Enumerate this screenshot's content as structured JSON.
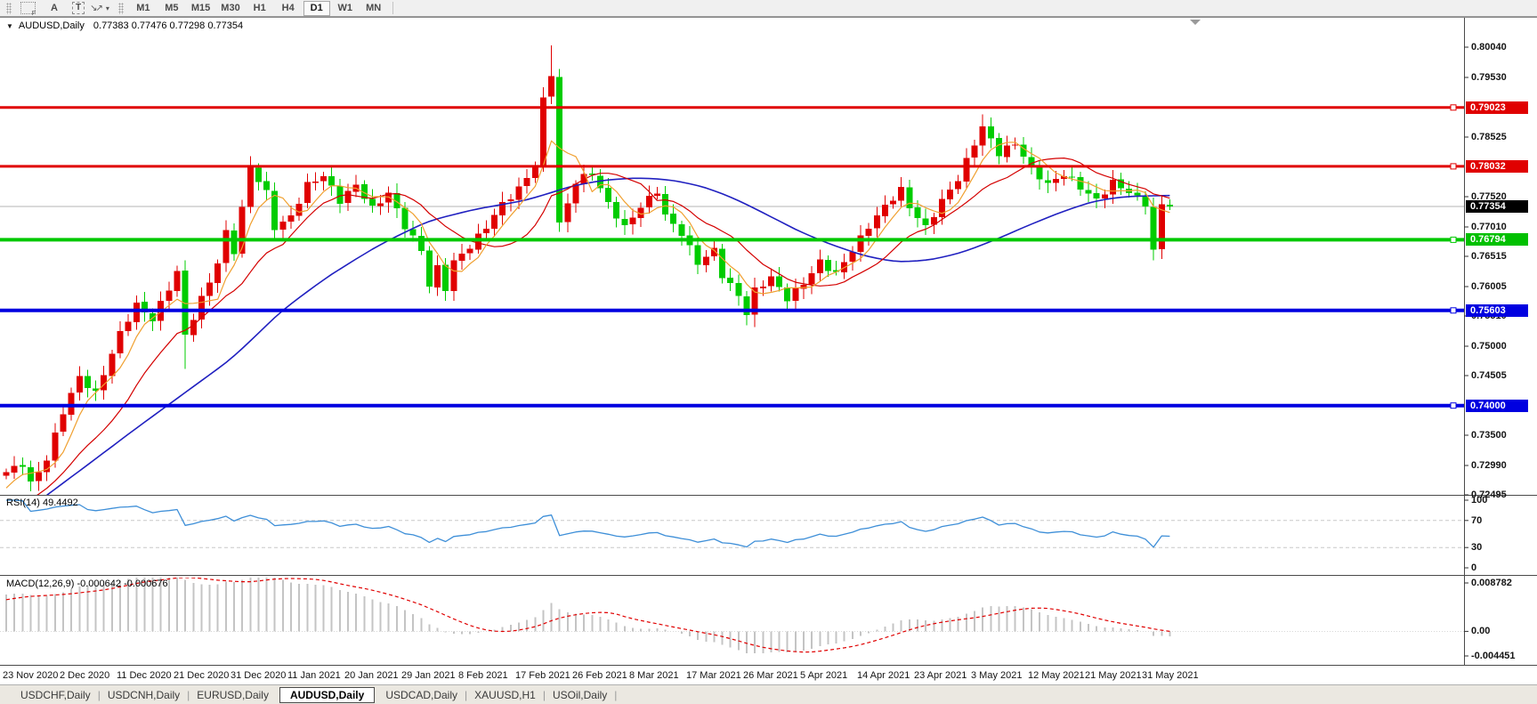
{
  "toolbar": {
    "tools": {
      "label_a": "A",
      "label_t": "T"
    },
    "timeframes": [
      {
        "label": "M1"
      },
      {
        "label": "M5"
      },
      {
        "label": "M15"
      },
      {
        "label": "M30"
      },
      {
        "label": "H1"
      },
      {
        "label": "H4"
      },
      {
        "label": "D1",
        "active": true
      },
      {
        "label": "W1"
      },
      {
        "label": "MN"
      }
    ]
  },
  "chart": {
    "title": {
      "symbol": "AUDUSD,Daily",
      "ohlc": "0.77383 0.77476 0.77298 0.77354"
    },
    "price_axis": {
      "ticks": [
        {
          "label": "0.80040",
          "price": 0.8004
        },
        {
          "label": "0.79530",
          "price": 0.7953
        },
        {
          "label": "0.78525",
          "price": 0.78525
        },
        {
          "label": "0.77520",
          "price": 0.7752
        },
        {
          "label": "0.77010",
          "price": 0.7701
        },
        {
          "label": "0.76515",
          "price": 0.76515
        },
        {
          "label": "0.76005",
          "price": 0.76005
        },
        {
          "label": "0.75510",
          "price": 0.7551
        },
        {
          "label": "0.75000",
          "price": 0.75
        },
        {
          "label": "0.74505",
          "price": 0.74505
        },
        {
          "label": "0.73500",
          "price": 0.735
        },
        {
          "label": "0.72990",
          "price": 0.7299
        },
        {
          "label": "0.72495",
          "price": 0.72495
        }
      ],
      "badges": [
        {
          "label": "0.79023",
          "price": 0.79023,
          "color": "#e00000"
        },
        {
          "label": "0.78032",
          "price": 0.78032,
          "color": "#e00000"
        },
        {
          "label": "0.77354",
          "price": 0.77354,
          "color": "#000000"
        },
        {
          "label": "0.76794",
          "price": 0.76794,
          "color": "#00c000"
        },
        {
          "label": "0.75603",
          "price": 0.75603,
          "color": "#0000e0"
        },
        {
          "label": "0.74000",
          "price": 0.74,
          "color": "#0000e0"
        }
      ]
    },
    "dates": [
      "23 Nov 2020",
      "2 Dec 2020",
      "11 Dec 2020",
      "21 Dec 2020",
      "31 Dec 2020",
      "11 Jan 2021",
      "20 Jan 2021",
      "29 Jan 2021",
      "8 Feb 2021",
      "17 Feb 2021",
      "26 Feb 2021",
      "8 Mar 2021",
      "17 Mar 2021",
      "26 Mar 2021",
      "5 Apr 2021",
      "14 Apr 2021",
      "23 Apr 2021",
      "3 May 2021",
      "12 May 2021",
      "21 May 2021",
      "31 May 2021"
    ]
  },
  "rsi": {
    "label": "RSI(14) 49.4492",
    "axis": [
      {
        "label": "100",
        "value": 100
      },
      {
        "label": "70",
        "value": 70
      },
      {
        "label": "30",
        "value": 30
      },
      {
        "label": "0",
        "value": 0
      }
    ],
    "levels": [
      70,
      30
    ]
  },
  "macd": {
    "label": "MACD(12,26,9) -0.000642 -0.000676",
    "axis": [
      {
        "label": "0.008782",
        "value": 0.008782
      },
      {
        "label": "0.00",
        "value": 0
      },
      {
        "label": "-0.004451",
        "value": -0.004451
      }
    ]
  },
  "tabs": [
    {
      "label": "USDCHF,Daily"
    },
    {
      "label": "USDCNH,Daily"
    },
    {
      "label": "EURUSD,Daily"
    },
    {
      "label": "AUDUSD,Daily",
      "active": true
    },
    {
      "label": "USDCAD,Daily"
    },
    {
      "label": "XAUUSD,H1"
    },
    {
      "label": "USOil,Daily"
    }
  ],
  "chart_data": {
    "type": "candlestick",
    "symbol": "AUDUSD",
    "timeframe": "Daily",
    "title": "AUDUSD,Daily",
    "candle_count": 144,
    "last_ohlc": {
      "open": 0.77383,
      "high": 0.77476,
      "low": 0.77298,
      "close": 0.77354
    },
    "current_price": 0.77354,
    "up_color": "#e00000",
    "down_color": "#00cc00",
    "horizontal_levels": [
      {
        "price": 0.79023,
        "color": "#e00000",
        "width": 3
      },
      {
        "price": 0.78032,
        "color": "#e00000",
        "width": 3
      },
      {
        "price": 0.76794,
        "color": "#00c800",
        "width": 4
      },
      {
        "price": 0.75603,
        "color": "#0000e0",
        "width": 4
      },
      {
        "price": 0.74,
        "color": "#0000e0",
        "width": 4
      }
    ],
    "close_anchors": [
      [
        0,
        0.7288
      ],
      [
        2,
        0.7302
      ],
      [
        3,
        0.7268
      ],
      [
        5,
        0.731
      ],
      [
        7,
        0.739
      ],
      [
        9,
        0.7448
      ],
      [
        11,
        0.742
      ],
      [
        14,
        0.7522
      ],
      [
        16,
        0.757
      ],
      [
        18,
        0.7545
      ],
      [
        21,
        0.7625
      ],
      [
        22,
        0.7518
      ],
      [
        24,
        0.758
      ],
      [
        26,
        0.764
      ],
      [
        27,
        0.7692
      ],
      [
        28,
        0.766
      ],
      [
        30,
        0.7802
      ],
      [
        32,
        0.7758
      ],
      [
        33,
        0.77
      ],
      [
        35,
        0.7718
      ],
      [
        37,
        0.7772
      ],
      [
        39,
        0.7788
      ],
      [
        41,
        0.7745
      ],
      [
        43,
        0.7772
      ],
      [
        45,
        0.7732
      ],
      [
        47,
        0.7758
      ],
      [
        49,
        0.7702
      ],
      [
        51,
        0.7662
      ],
      [
        52,
        0.7602
      ],
      [
        53,
        0.7632
      ],
      [
        54,
        0.7598
      ],
      [
        55,
        0.7642
      ],
      [
        57,
        0.7668
      ],
      [
        59,
        0.7702
      ],
      [
        61,
        0.774
      ],
      [
        63,
        0.7765
      ],
      [
        65,
        0.7805
      ],
      [
        66,
        0.7915
      ],
      [
        67,
        0.796
      ],
      [
        68,
        0.7706
      ],
      [
        69,
        0.774
      ],
      [
        70,
        0.7778
      ],
      [
        72,
        0.7792
      ],
      [
        74,
        0.774
      ],
      [
        76,
        0.77
      ],
      [
        78,
        0.7736
      ],
      [
        80,
        0.7762
      ],
      [
        81,
        0.772
      ],
      [
        83,
        0.769
      ],
      [
        85,
        0.764
      ],
      [
        87,
        0.7662
      ],
      [
        88,
        0.762
      ],
      [
        90,
        0.7585
      ],
      [
        91,
        0.7555
      ],
      [
        92,
        0.7594
      ],
      [
        94,
        0.7616
      ],
      [
        96,
        0.758
      ],
      [
        98,
        0.7606
      ],
      [
        100,
        0.7642
      ],
      [
        102,
        0.7622
      ],
      [
        104,
        0.7662
      ],
      [
        106,
        0.7702
      ],
      [
        108,
        0.7736
      ],
      [
        110,
        0.7764
      ],
      [
        111,
        0.7735
      ],
      [
        113,
        0.77
      ],
      [
        115,
        0.7745
      ],
      [
        117,
        0.7782
      ],
      [
        119,
        0.7842
      ],
      [
        120,
        0.787
      ],
      [
        122,
        0.7825
      ],
      [
        124,
        0.7842
      ],
      [
        126,
        0.78
      ],
      [
        128,
        0.7772
      ],
      [
        130,
        0.779
      ],
      [
        132,
        0.7768
      ],
      [
        134,
        0.7746
      ],
      [
        136,
        0.7776
      ],
      [
        138,
        0.776
      ],
      [
        140,
        0.774
      ],
      [
        141,
        0.766
      ],
      [
        142,
        0.7738
      ],
      [
        143,
        0.77354
      ]
    ],
    "wick_events": [
      {
        "i": 22,
        "low": 0.7462
      },
      {
        "i": 30,
        "high": 0.782
      },
      {
        "i": 67,
        "high": 0.8007
      },
      {
        "i": 92,
        "low": 0.7532
      },
      {
        "i": 120,
        "high": 0.7891
      },
      {
        "i": 141,
        "low": 0.7645
      }
    ],
    "ma_blue_anchors": [
      [
        5,
        0.7249
      ],
      [
        10,
        0.73
      ],
      [
        16,
        0.7362
      ],
      [
        22,
        0.7422
      ],
      [
        28,
        0.7482
      ],
      [
        34,
        0.7562
      ],
      [
        40,
        0.7622
      ],
      [
        46,
        0.7672
      ],
      [
        52,
        0.7712
      ],
      [
        58,
        0.7732
      ],
      [
        64,
        0.7746
      ],
      [
        70,
        0.7772
      ],
      [
        74,
        0.7781
      ],
      [
        78,
        0.7784
      ],
      [
        82,
        0.778
      ],
      [
        86,
        0.7768
      ],
      [
        90,
        0.7746
      ],
      [
        94,
        0.7718
      ],
      [
        98,
        0.769
      ],
      [
        102,
        0.7668
      ],
      [
        106,
        0.765
      ],
      [
        110,
        0.7641
      ],
      [
        114,
        0.7646
      ],
      [
        118,
        0.766
      ],
      [
        122,
        0.7682
      ],
      [
        126,
        0.7706
      ],
      [
        130,
        0.7728
      ],
      [
        134,
        0.7746
      ],
      [
        138,
        0.7753
      ],
      [
        143,
        0.7754
      ]
    ],
    "ma_colors": {
      "fast": "#f0a030",
      "mid": "#d40000",
      "slow": "#2020c0"
    },
    "indicators": {
      "rsi": {
        "period": 14,
        "last": 49.4492,
        "color": "#3e8fd8",
        "levels": [
          70,
          30
        ]
      },
      "macd": {
        "fast": 12,
        "slow": 26,
        "signal": 9,
        "last_macd": -0.000642,
        "last_signal": -0.000676,
        "hist_color": "#c4c4c4",
        "signal_color": "#e00000"
      }
    }
  }
}
